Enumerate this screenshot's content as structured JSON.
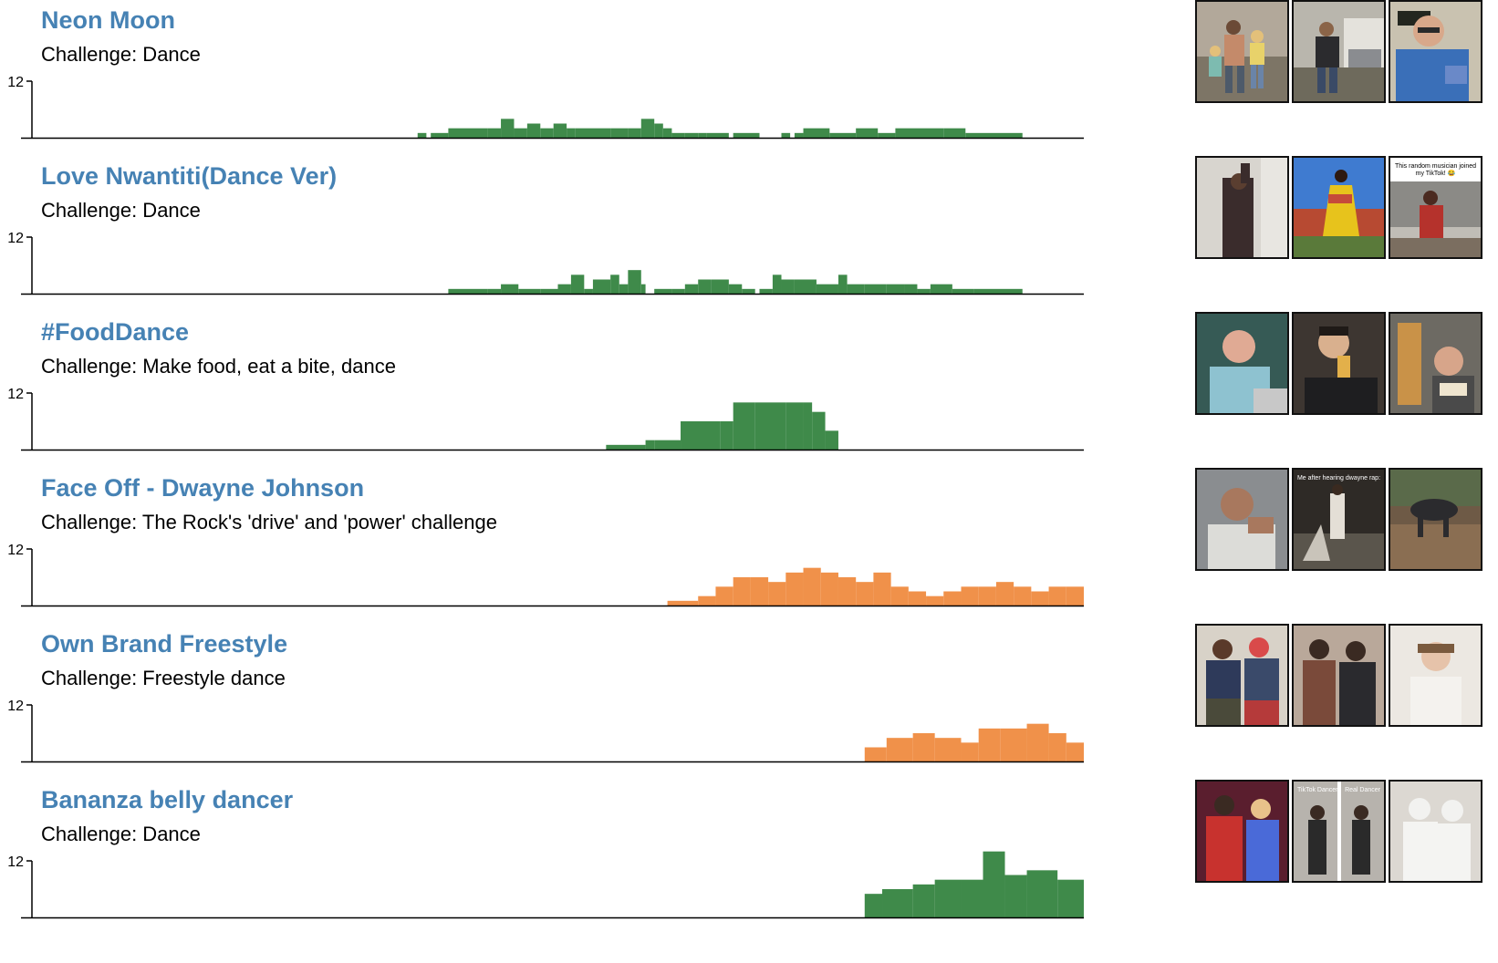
{
  "colors": {
    "title": "#4682b4",
    "green": "#3f8a4a",
    "orange": "#f0914a",
    "axis": "#000000"
  },
  "thumbnail_captions": {
    "row2_thumb3": "This random musician joined my TikTok! 😂",
    "row4_thumb2": "Me after hearing dwayne rap:",
    "row6_thumb2_left": "TikTok Dancer",
    "row6_thumb2_right": "Real Dancer"
  },
  "chart_data": [
    {
      "type": "bar",
      "title": "Neon Moon",
      "subtitle": "Challenge: Dance",
      "color": "green",
      "yticks": [
        "12"
      ],
      "ylim": [
        0,
        12
      ],
      "xlim": [
        0,
        120
      ],
      "bins": [
        [
          44,
          45,
          1
        ],
        [
          45.5,
          46,
          1
        ],
        [
          46,
          47.5,
          1
        ],
        [
          47.5,
          52,
          2
        ],
        [
          52,
          53.5,
          2
        ],
        [
          53.5,
          55,
          4
        ],
        [
          55,
          56.5,
          2
        ],
        [
          56.5,
          58,
          3
        ],
        [
          58,
          59.5,
          2
        ],
        [
          59.5,
          61,
          3
        ],
        [
          61,
          62,
          2
        ],
        [
          62,
          66,
          2
        ],
        [
          66,
          68,
          2
        ],
        [
          68,
          69.5,
          2
        ],
        [
          69.5,
          71,
          4
        ],
        [
          71,
          72,
          3
        ],
        [
          72,
          73,
          2
        ],
        [
          73,
          74.5,
          1
        ],
        [
          74.5,
          76,
          1
        ],
        [
          76,
          77,
          1
        ],
        [
          77,
          79.5,
          1
        ],
        [
          79.5,
          80,
          0
        ],
        [
          80,
          83,
          1
        ],
        [
          85.5,
          86.5,
          1
        ],
        [
          87,
          88,
          1
        ],
        [
          88,
          91,
          2
        ],
        [
          91,
          94,
          1
        ],
        [
          94,
          96.5,
          2
        ],
        [
          96.5,
          98.5,
          1
        ],
        [
          98.5,
          104,
          2
        ],
        [
          104,
          106.5,
          2
        ],
        [
          106.5,
          113,
          1
        ]
      ]
    },
    {
      "type": "bar",
      "title": "Love Nwantiti(Dance Ver)",
      "subtitle": "Challenge: Dance",
      "color": "green",
      "yticks": [
        "12"
      ],
      "ylim": [
        0,
        12
      ],
      "xlim": [
        0,
        120
      ],
      "bins": [
        [
          47.5,
          52,
          1
        ],
        [
          52,
          53.5,
          1
        ],
        [
          53.5,
          55.5,
          2
        ],
        [
          55.5,
          58,
          1
        ],
        [
          58,
          60,
          1
        ],
        [
          60,
          61.5,
          2
        ],
        [
          61.5,
          63,
          4
        ],
        [
          63,
          64,
          1
        ],
        [
          64,
          66,
          3
        ],
        [
          66,
          67,
          4
        ],
        [
          67,
          68,
          2
        ],
        [
          68,
          69.5,
          5
        ],
        [
          69.5,
          70,
          2
        ],
        [
          71,
          73,
          1
        ],
        [
          73,
          74.5,
          1
        ],
        [
          74.5,
          76,
          2
        ],
        [
          76,
          77.5,
          3
        ],
        [
          77.5,
          79.5,
          3
        ],
        [
          79.5,
          81,
          2
        ],
        [
          81,
          82.5,
          1
        ],
        [
          83,
          84.5,
          1
        ],
        [
          84.5,
          85.5,
          4
        ],
        [
          85.5,
          87,
          3
        ],
        [
          87,
          89.5,
          3
        ],
        [
          89.5,
          92,
          2
        ],
        [
          92,
          93,
          4
        ],
        [
          93,
          95,
          2
        ],
        [
          95,
          97.5,
          2
        ],
        [
          97.5,
          99.5,
          2
        ],
        [
          99.5,
          101,
          2
        ],
        [
          101,
          102.5,
          1
        ],
        [
          102.5,
          105,
          2
        ],
        [
          105,
          107.5,
          1
        ],
        [
          107.5,
          113,
          1
        ]
      ]
    },
    {
      "type": "bar",
      "title": "#FoodDance",
      "subtitle": "Challenge: Make food, eat a bite, dance",
      "color": "green",
      "yticks": [
        "12"
      ],
      "ylim": [
        0,
        12
      ],
      "xlim": [
        0,
        120
      ],
      "bins": [
        [
          65.5,
          70,
          1
        ],
        [
          70,
          71,
          2
        ],
        [
          71,
          74,
          2
        ],
        [
          74,
          78.5,
          6
        ],
        [
          78.5,
          80,
          6
        ],
        [
          80,
          82.5,
          10
        ],
        [
          82.5,
          86,
          10
        ],
        [
          86,
          88,
          10
        ],
        [
          88,
          89,
          10
        ],
        [
          89,
          90.5,
          8
        ],
        [
          90.5,
          92,
          4
        ]
      ]
    },
    {
      "type": "bar",
      "title": "Face Off - Dwayne Johnson",
      "subtitle": "Challenge: The Rock's 'drive' and 'power' challenge",
      "color": "orange",
      "yticks": [
        "12"
      ],
      "ylim": [
        0,
        12
      ],
      "xlim": [
        0,
        120
      ],
      "bins": [
        [
          72.5,
          76,
          1
        ],
        [
          76,
          78,
          2
        ],
        [
          78,
          80,
          4
        ],
        [
          80,
          82,
          6
        ],
        [
          82,
          84,
          6
        ],
        [
          84,
          86,
          5
        ],
        [
          86,
          88,
          7
        ],
        [
          88,
          90,
          8
        ],
        [
          90,
          92,
          7
        ],
        [
          92,
          94,
          6
        ],
        [
          94,
          96,
          5
        ],
        [
          96,
          98,
          7
        ],
        [
          98,
          100,
          4
        ],
        [
          100,
          102,
          3
        ],
        [
          102,
          104,
          2
        ],
        [
          104,
          106,
          3
        ],
        [
          106,
          108,
          4
        ],
        [
          108,
          110,
          4
        ],
        [
          110,
          112,
          5
        ],
        [
          112,
          114,
          4
        ],
        [
          114,
          116,
          3
        ],
        [
          116,
          118,
          4
        ],
        [
          118,
          120,
          4
        ]
      ]
    },
    {
      "type": "bar",
      "title": "Own Brand Freestyle",
      "subtitle": "Challenge: Freestyle dance",
      "color": "orange",
      "yticks": [
        "12"
      ],
      "ylim": [
        0,
        12
      ],
      "xlim": [
        0,
        120
      ],
      "bins": [
        [
          95,
          97.5,
          3
        ],
        [
          97.5,
          100.5,
          5
        ],
        [
          100.5,
          103,
          6
        ],
        [
          103,
          106,
          5
        ],
        [
          106,
          108,
          4
        ],
        [
          108,
          110.5,
          7
        ],
        [
          110.5,
          113.5,
          7
        ],
        [
          113.5,
          116,
          8
        ],
        [
          116,
          118,
          6
        ],
        [
          118,
          120,
          4
        ]
      ]
    },
    {
      "type": "bar",
      "title": "Bananza belly dancer",
      "subtitle": "Challenge: Dance",
      "color": "green",
      "yticks": [
        "12"
      ],
      "ylim": [
        0,
        12
      ],
      "xlim": [
        0,
        120
      ],
      "bins": [
        [
          95,
          97,
          5
        ],
        [
          97,
          100.5,
          6
        ],
        [
          100.5,
          103,
          7
        ],
        [
          103,
          106,
          8
        ],
        [
          106,
          108.5,
          8
        ],
        [
          108.5,
          111,
          14
        ],
        [
          111,
          113.5,
          9
        ],
        [
          113.5,
          117,
          10
        ],
        [
          117,
          120,
          8
        ]
      ]
    }
  ]
}
